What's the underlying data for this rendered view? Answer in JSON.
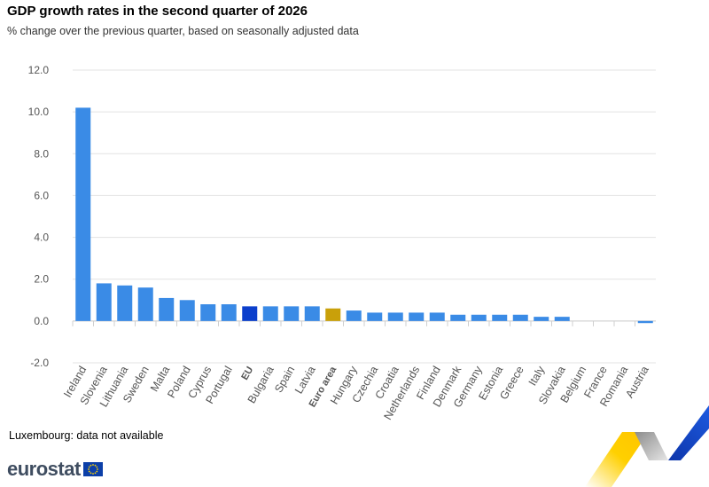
{
  "header": {
    "title": "GDP growth rates in the second quarter of 2026",
    "subtitle": "% change over the previous quarter, based on seasonally adjusted data"
  },
  "footer": {
    "note": "Luxembourg: data not available",
    "logo_text": "eurostat"
  },
  "colors": {
    "country_bar": "#3a8be6",
    "eu_bar": "#0c3fcc",
    "euro_area_bar": "#c9a00a",
    "gridline": "#e3e3e3",
    "axis_text": "#555555"
  },
  "icons": {
    "logo_flag": "eu-flag-icon",
    "decoration": "eurostat-ribbon-icon"
  },
  "chart_data": {
    "type": "bar",
    "title": "GDP growth rates in the second quarter of 2026",
    "subtitle": "% change over the previous quarter, based on seasonally adjusted data",
    "xlabel": "",
    "ylabel": "",
    "ylim": [
      -2.0,
      12.0
    ],
    "yticks": [
      "12.0",
      "10.0",
      "8.0",
      "6.0",
      "4.0",
      "2.0",
      "0.0",
      "-2.0"
    ],
    "ytick_values": [
      12,
      10,
      8,
      6,
      4,
      2,
      0,
      -2
    ],
    "grid": true,
    "legend": "none",
    "categories": [
      "Ireland",
      "Slovenia",
      "Lithuania",
      "Sweden",
      "Malta",
      "Poland",
      "Cyprus",
      "Portugal",
      "EU",
      "Bulgaria",
      "Spain",
      "Latvia",
      "Euro area",
      "Hungary",
      "Czechia",
      "Croatia",
      "Netherlands",
      "Finland",
      "Denmark",
      "Germany",
      "Estonia",
      "Greece",
      "Italy",
      "Slovakia",
      "Belgium",
      "France",
      "Romania",
      "Austria"
    ],
    "values": [
      10.2,
      1.8,
      1.7,
      1.6,
      1.1,
      1.0,
      0.8,
      0.8,
      0.7,
      0.7,
      0.7,
      0.7,
      0.6,
      0.5,
      0.4,
      0.4,
      0.4,
      0.4,
      0.3,
      0.3,
      0.3,
      0.3,
      0.2,
      0.2,
      0.0,
      0.0,
      0.0,
      -0.1
    ],
    "highlight": {
      "EU": "eu_bar",
      "Euro area": "euro_area_bar"
    }
  }
}
